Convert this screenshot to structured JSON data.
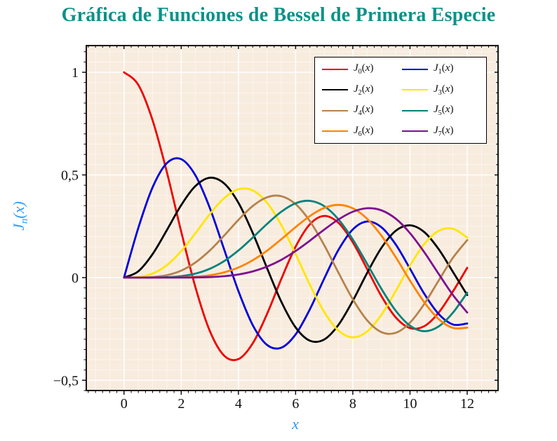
{
  "title": {
    "text": "Gráfica de Funciones de Bessel de Primera Especie",
    "color": "#0e9188"
  },
  "colors": {
    "axis_label": "#2f9cf4",
    "tick_label": "#111111",
    "frame": "#000000"
  },
  "chart_data": {
    "type": "line",
    "title": "Gráfica de Funciones de Bessel de Primera Especie",
    "xlabel": "x",
    "ylabel": "J_n(x)",
    "xlim": [
      -1.32,
      13.08
    ],
    "ylim": [
      -0.55,
      1.13
    ],
    "x_ticks": [
      0,
      2,
      4,
      6,
      8,
      10,
      12
    ],
    "x_tick_labels": [
      "0",
      "2",
      "4",
      "6",
      "8",
      "10",
      "12"
    ],
    "y_ticks": [
      -0.5,
      0,
      0.5,
      1
    ],
    "y_tick_labels": [
      "−0,5",
      "0",
      "0,5",
      "1"
    ],
    "x_minor_grid_step": 0.5,
    "x_minor_tick_step": 0.25,
    "y_minor_step": 0.05,
    "grid": "both",
    "legend_position": "top-right",
    "plot_bg": "#f8ecdf",
    "grid_color": "#ffffff",
    "x_start": 0,
    "x_step": 0.5,
    "series": [
      {
        "name": "J_0(x)",
        "color": "#ee0000",
        "values": [
          1.0,
          0.9385,
          0.7652,
          0.5118,
          0.2239,
          -0.0484,
          -0.2601,
          -0.3801,
          -0.3971,
          -0.3205,
          -0.1776,
          -0.0068,
          0.1506,
          0.2601,
          0.3001,
          0.2663,
          0.1717,
          0.0419,
          -0.0903,
          -0.1939,
          -0.2459,
          -0.2366,
          -0.1712,
          -0.0677,
          0.0477
        ]
      },
      {
        "name": "J_1(x)",
        "color": "#0000d9",
        "values": [
          0.0,
          0.2423,
          0.4401,
          0.5579,
          0.5767,
          0.4971,
          0.3391,
          0.1374,
          -0.066,
          -0.2311,
          -0.3276,
          -0.3414,
          -0.2767,
          -0.1538,
          -0.0047,
          0.1352,
          0.2346,
          0.2731,
          0.2453,
          0.1613,
          0.0435,
          -0.0789,
          -0.1768,
          -0.2284,
          -0.2234
        ]
      },
      {
        "name": "J_2(x)",
        "color": "#000000",
        "values": [
          0.0,
          0.0307,
          0.115,
          0.2321,
          0.3528,
          0.4461,
          0.4862,
          0.4586,
          0.3641,
          0.2178,
          0.0466,
          -0.1173,
          -0.2428,
          -0.3074,
          -0.3014,
          -0.2302,
          -0.113,
          0.0224,
          0.1448,
          0.2279,
          0.2546,
          0.2216,
          0.139,
          0.028,
          -0.0849
        ]
      },
      {
        "name": "J_3(x)",
        "color": "#ffe600",
        "values": [
          0.0,
          0.0026,
          0.0196,
          0.061,
          0.1289,
          0.2166,
          0.3091,
          0.3867,
          0.4302,
          0.4247,
          0.3648,
          0.2561,
          0.1148,
          -0.0353,
          -0.1676,
          -0.2581,
          -0.2911,
          -0.2626,
          -0.1809,
          -0.0653,
          0.0584,
          0.1633,
          0.2273,
          0.2381,
          0.1951
        ]
      },
      {
        "name": "J_4(x)",
        "color": "#b5824c",
        "values": [
          0.0,
          0.0002,
          0.0025,
          0.0118,
          0.034,
          0.0738,
          0.132,
          0.2044,
          0.2811,
          0.3484,
          0.3912,
          0.3967,
          0.3576,
          0.2748,
          0.1578,
          0.0238,
          -0.1054,
          -0.2077,
          -0.2655,
          -0.2691,
          -0.2196,
          -0.1283,
          -0.015,
          0.0963,
          0.1825
        ]
      },
      {
        "name": "J_5(x)",
        "color": "#00827a",
        "values": [
          0.0,
          0.0,
          0.0002,
          0.0018,
          0.007,
          0.0195,
          0.043,
          0.0804,
          0.1321,
          0.1947,
          0.2611,
          0.3209,
          0.3621,
          0.3736,
          0.3479,
          0.2835,
          0.1858,
          0.0671,
          -0.055,
          -0.1613,
          -0.2341,
          -0.2611,
          -0.2383,
          -0.1711,
          -0.0735
        ]
      },
      {
        "name": "J_6(x)",
        "color": "#ff8400",
        "values": [
          0.0,
          0.0,
          0.0,
          0.0002,
          0.0012,
          0.0042,
          0.0114,
          0.0254,
          0.0491,
          0.0843,
          0.131,
          0.1868,
          0.2458,
          0.2999,
          0.3392,
          0.3541,
          0.3376,
          0.2867,
          0.2043,
          0.0993,
          -0.0145,
          -0.1203,
          -0.2016,
          -0.245,
          -0.2437
        ]
      },
      {
        "name": "J_7(x)",
        "color": "#7d0f91",
        "values": [
          0.0,
          0.0,
          0.0,
          0.0,
          0.0002,
          0.0008,
          0.0025,
          0.0067,
          0.0152,
          0.0301,
          0.0534,
          0.0866,
          0.1296,
          0.18,
          0.2336,
          0.283,
          0.3206,
          0.3377,
          0.3275,
          0.2868,
          0.2167,
          0.1236,
          0.0184,
          -0.0845,
          -0.1703
        ]
      }
    ]
  }
}
